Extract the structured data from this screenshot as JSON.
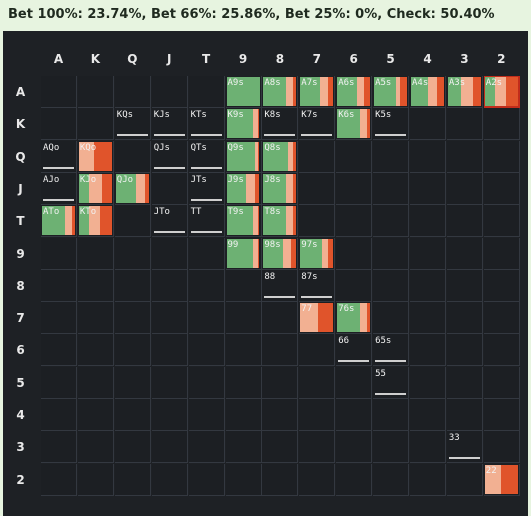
{
  "header": {
    "summary": "Bet 100%: 23.74%, Bet 66%: 25.86%, Bet 25%: 0%, Check: 50.40%"
  },
  "grid": {
    "ranks": [
      "A",
      "K",
      "Q",
      "J",
      "T",
      "9",
      "8",
      "7",
      "6",
      "5",
      "4",
      "3",
      "2"
    ]
  },
  "colors": {
    "bet_100": "#e0542b",
    "bet_66": "#f2b092",
    "check": "#6db173",
    "label": "#f2f2f2",
    "selected": "#c22c1b"
  },
  "hands": [
    {
      "r": 0,
      "c": 5,
      "label": "A9s",
      "mix": [
        0.0,
        0.0,
        1.0
      ]
    },
    {
      "r": 0,
      "c": 6,
      "label": "A8s",
      "mix": [
        0.1,
        0.2,
        0.7
      ]
    },
    {
      "r": 0,
      "c": 7,
      "label": "A7s",
      "mix": [
        0.15,
        0.25,
        0.6
      ]
    },
    {
      "r": 0,
      "c": 8,
      "label": "A6s",
      "mix": [
        0.2,
        0.2,
        0.6
      ]
    },
    {
      "r": 0,
      "c": 9,
      "label": "A5s",
      "mix": [
        0.2,
        0.15,
        0.65
      ]
    },
    {
      "r": 0,
      "c": 10,
      "label": "A4s",
      "mix": [
        0.2,
        0.3,
        0.5
      ]
    },
    {
      "r": 0,
      "c": 11,
      "label": "A3s",
      "mix": [
        0.25,
        0.35,
        0.4
      ]
    },
    {
      "r": 0,
      "c": 12,
      "label": "A2s",
      "mix": [
        0.35,
        0.35,
        0.3
      ],
      "selected": true
    },
    {
      "r": 1,
      "c": 2,
      "label": "KQs",
      "mix": [
        0,
        0,
        0
      ]
    },
    {
      "r": 1,
      "c": 3,
      "label": "KJs",
      "mix": [
        0,
        0,
        0
      ]
    },
    {
      "r": 1,
      "c": 4,
      "label": "KTs",
      "mix": [
        0,
        0,
        0
      ]
    },
    {
      "r": 1,
      "c": 5,
      "label": "K9s",
      "mix": [
        0.05,
        0.15,
        0.8
      ]
    },
    {
      "r": 1,
      "c": 6,
      "label": "K8s",
      "mix": [
        0,
        0,
        0
      ]
    },
    {
      "r": 1,
      "c": 7,
      "label": "K7s",
      "mix": [
        0,
        0,
        0
      ]
    },
    {
      "r": 1,
      "c": 8,
      "label": "K6s",
      "mix": [
        0.1,
        0.2,
        0.7
      ]
    },
    {
      "r": 1,
      "c": 9,
      "label": "K5s",
      "mix": [
        0,
        0,
        0
      ]
    },
    {
      "r": 2,
      "c": 0,
      "label": "AQo",
      "mix": [
        0,
        0,
        0
      ]
    },
    {
      "r": 2,
      "c": 1,
      "label": "KQo",
      "mix": [
        0.55,
        0.45,
        0
      ]
    },
    {
      "r": 2,
      "c": 3,
      "label": "QJs",
      "mix": [
        0,
        0,
        0
      ]
    },
    {
      "r": 2,
      "c": 4,
      "label": "QTs",
      "mix": [
        0,
        0,
        0
      ]
    },
    {
      "r": 2,
      "c": 5,
      "label": "Q9s",
      "mix": [
        0.05,
        0.1,
        0.85
      ]
    },
    {
      "r": 2,
      "c": 6,
      "label": "Q8s",
      "mix": [
        0.1,
        0.15,
        0.75
      ]
    },
    {
      "r": 3,
      "c": 0,
      "label": "AJo",
      "mix": [
        0,
        0,
        0
      ]
    },
    {
      "r": 3,
      "c": 1,
      "label": "KJo",
      "mix": [
        0.3,
        0.4,
        0.3
      ]
    },
    {
      "r": 3,
      "c": 2,
      "label": "QJo",
      "mix": [
        0.1,
        0.3,
        0.6
      ]
    },
    {
      "r": 3,
      "c": 4,
      "label": "JTs",
      "mix": [
        0,
        0,
        0
      ]
    },
    {
      "r": 3,
      "c": 5,
      "label": "J9s",
      "mix": [
        0.15,
        0.25,
        0.6
      ]
    },
    {
      "r": 3,
      "c": 6,
      "label": "J8s",
      "mix": [
        0.1,
        0.2,
        0.7
      ]
    },
    {
      "r": 4,
      "c": 0,
      "label": "ATo",
      "mix": [
        0.1,
        0.2,
        0.7
      ]
    },
    {
      "r": 4,
      "c": 1,
      "label": "KTo",
      "mix": [
        0.35,
        0.35,
        0.3
      ]
    },
    {
      "r": 4,
      "c": 3,
      "label": "JTo",
      "mix": [
        0,
        0,
        0
      ]
    },
    {
      "r": 4,
      "c": 4,
      "label": "TT",
      "mix": [
        0,
        0,
        0
      ]
    },
    {
      "r": 4,
      "c": 5,
      "label": "T9s",
      "mix": [
        0.05,
        0.15,
        0.8
      ]
    },
    {
      "r": 4,
      "c": 6,
      "label": "T8s",
      "mix": [
        0.1,
        0.2,
        0.7
      ]
    },
    {
      "r": 5,
      "c": 5,
      "label": "99",
      "mix": [
        0.05,
        0.15,
        0.8
      ]
    },
    {
      "r": 5,
      "c": 6,
      "label": "98s",
      "mix": [
        0.15,
        0.25,
        0.6
      ]
    },
    {
      "r": 5,
      "c": 7,
      "label": "97s",
      "mix": [
        0.15,
        0.2,
        0.65
      ]
    },
    {
      "r": 6,
      "c": 6,
      "label": "88",
      "mix": [
        0,
        0,
        0
      ]
    },
    {
      "r": 6,
      "c": 7,
      "label": "87s",
      "mix": [
        0,
        0,
        0
      ]
    },
    {
      "r": 7,
      "c": 7,
      "label": "77",
      "mix": [
        0.45,
        0.55,
        0
      ]
    },
    {
      "r": 7,
      "c": 8,
      "label": "76s",
      "mix": [
        0.1,
        0.2,
        0.7
      ]
    },
    {
      "r": 8,
      "c": 8,
      "label": "66",
      "mix": [
        0,
        0,
        0
      ]
    },
    {
      "r": 8,
      "c": 9,
      "label": "65s",
      "mix": [
        0,
        0,
        0
      ]
    },
    {
      "r": 9,
      "c": 9,
      "label": "55",
      "mix": [
        0,
        0,
        0
      ]
    },
    {
      "r": 11,
      "c": 11,
      "label": "33",
      "mix": [
        0,
        0,
        0
      ]
    },
    {
      "r": 12,
      "c": 12,
      "label": "22",
      "mix": [
        0.5,
        0.5,
        0
      ]
    }
  ],
  "underline_cells": [
    [
      1,
      2
    ],
    [
      1,
      3
    ],
    [
      1,
      4
    ],
    [
      1,
      6
    ],
    [
      1,
      7
    ],
    [
      1,
      9
    ],
    [
      2,
      0
    ],
    [
      2,
      3
    ],
    [
      2,
      4
    ],
    [
      3,
      0
    ],
    [
      3,
      4
    ],
    [
      4,
      3
    ],
    [
      4,
      4
    ],
    [
      6,
      6
    ],
    [
      6,
      7
    ],
    [
      8,
      8
    ],
    [
      8,
      9
    ],
    [
      9,
      9
    ],
    [
      11,
      11
    ]
  ]
}
